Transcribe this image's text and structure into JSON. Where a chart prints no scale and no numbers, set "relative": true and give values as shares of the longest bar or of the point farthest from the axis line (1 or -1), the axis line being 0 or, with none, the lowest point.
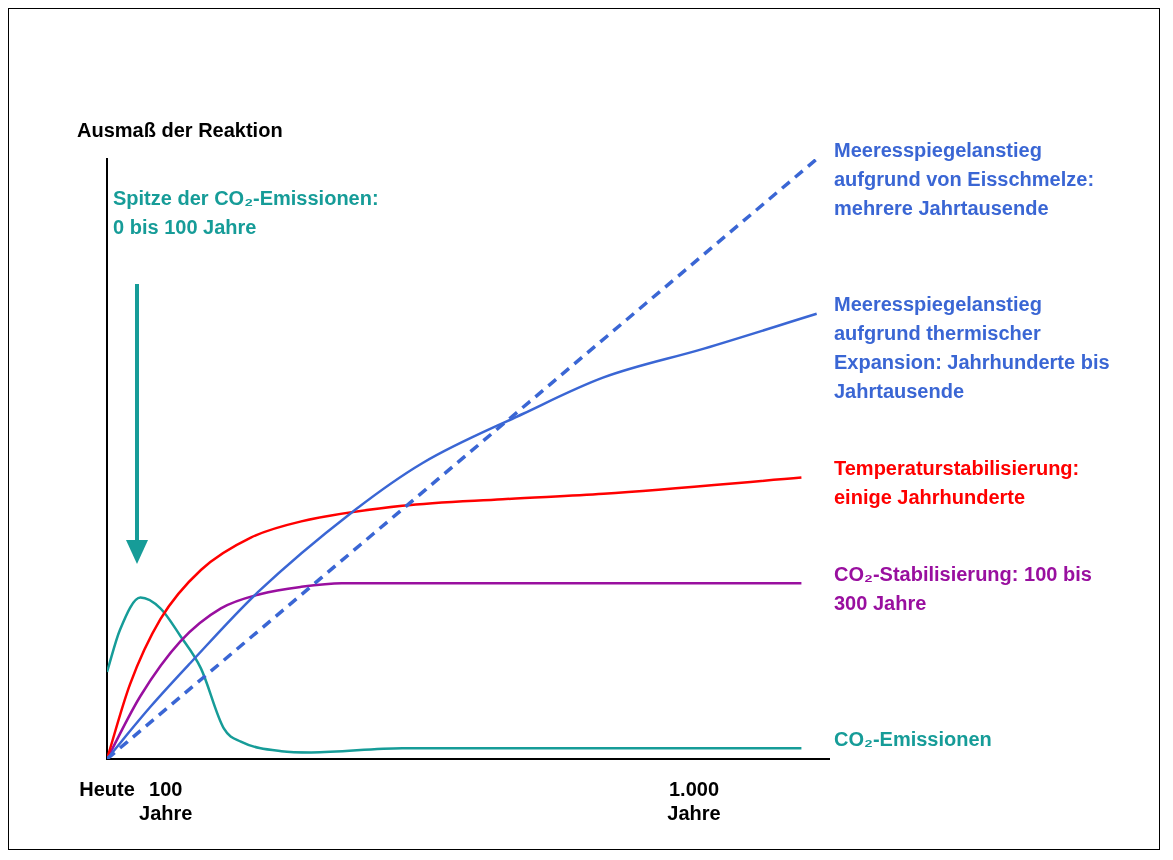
{
  "chart_data": {
    "type": "line",
    "relative": true,
    "ylabel": "Ausmaß der Reaktion",
    "xlim": [
      0,
      1230
    ],
    "xticks": [
      {
        "value": 0,
        "label": "Heute"
      },
      {
        "value": 100,
        "label": "100 Jahre"
      },
      {
        "value": 1000,
        "label": "1.000 Jahre"
      }
    ],
    "tick_labels": "x",
    "grid": false,
    "legend": false,
    "annotations": [
      "Spitze der CO₂-Emissionen: 0 bis 100 Jahre"
    ],
    "series": [
      {
        "name": "Meeresspiegelanstieg aufgrund von Eisschmelze: mehrere Jahrtausende",
        "color": "#3a66d4",
        "line_style": "dashed",
        "x": [
          0,
          1209
        ],
        "values": [
          0,
          1
        ]
      },
      {
        "name": "Meeresspiegelanstieg aufgrund thermischer Expansion: Jahrhunderte bis Jahrtausende",
        "color": "#3a66d4",
        "x": [
          0,
          74,
          142,
          257,
          417,
          537,
          708,
          846,
          1017,
          1209
        ],
        "values": [
          0,
          0.087,
          0.16,
          0.278,
          0.411,
          0.493,
          0.575,
          0.636,
          0.684,
          0.742
        ]
      },
      {
        "name": "Temperaturstabilisierung: einige Jahrhunderte",
        "color": "#ff0000",
        "x": [
          0,
          39,
          91,
          160,
          245,
          331,
          503,
          674,
          846,
          1183
        ],
        "values": [
          0,
          0.124,
          0.233,
          0.315,
          0.369,
          0.396,
          0.422,
          0.433,
          0.442,
          0.469
        ]
      },
      {
        "name": "CO₂-Stabilisierung: 100 bis 300 Jahre",
        "color": "#990f9f",
        "x": [
          0,
          57,
          125,
          194,
          262,
          331,
          400,
          1183
        ],
        "values": [
          0,
          0.105,
          0.196,
          0.251,
          0.275,
          0.287,
          0.293,
          0.293
        ]
      },
      {
        "name": "CO₂-Emissionen",
        "color": "#169c98",
        "x": [
          0,
          22,
          57,
          91,
          125,
          160,
          199,
          228,
          297,
          348,
          503,
          1183
        ],
        "values": [
          0.145,
          0.215,
          0.269,
          0.251,
          0.205,
          0.151,
          0.051,
          0.029,
          0.013,
          0.011,
          0.018,
          0.018
        ]
      }
    ]
  }
}
